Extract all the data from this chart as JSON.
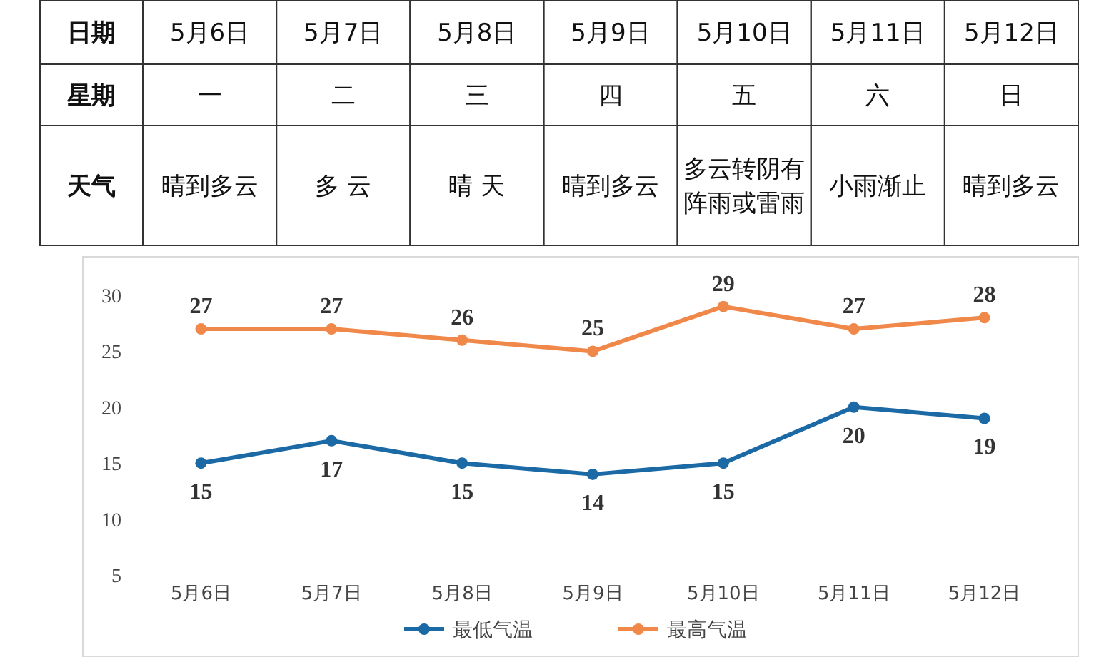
{
  "chart_data": [
    {
      "type": "other",
      "annotations": [
        "日期",
        "5月6日",
        "5月7日",
        "5月8日",
        "5月9日",
        "5月10日",
        "5月11日",
        "5月12日",
        "星期",
        "一",
        "二",
        "三",
        "四",
        "五",
        "六",
        "日",
        "天气",
        "晴到多云",
        "多 云",
        "晴 天",
        "晴到多云",
        "多云转阴有阵雨或雷雨",
        "小雨渐止",
        "晴到多云"
      ]
    },
    {
      "type": "line",
      "categories": [
        "5月6日",
        "5月7日",
        "5月8日",
        "5月9日",
        "5月10日",
        "5月11日",
        "5月12日"
      ],
      "series": [
        {
          "name": "最低气温",
          "color": "#1b6aa5",
          "values": [
            15,
            17,
            15,
            14,
            15,
            20,
            19
          ]
        },
        {
          "name": "最高气温",
          "color": "#f0884a",
          "values": [
            27,
            27,
            26,
            25,
            29,
            27,
            28
          ]
        }
      ],
      "ylim": [
        5,
        30
      ],
      "yticks": [
        5,
        10,
        15,
        20,
        25,
        30
      ],
      "grid": false,
      "data_labels": true,
      "legend": "bottom",
      "marker": "circle"
    }
  ]
}
